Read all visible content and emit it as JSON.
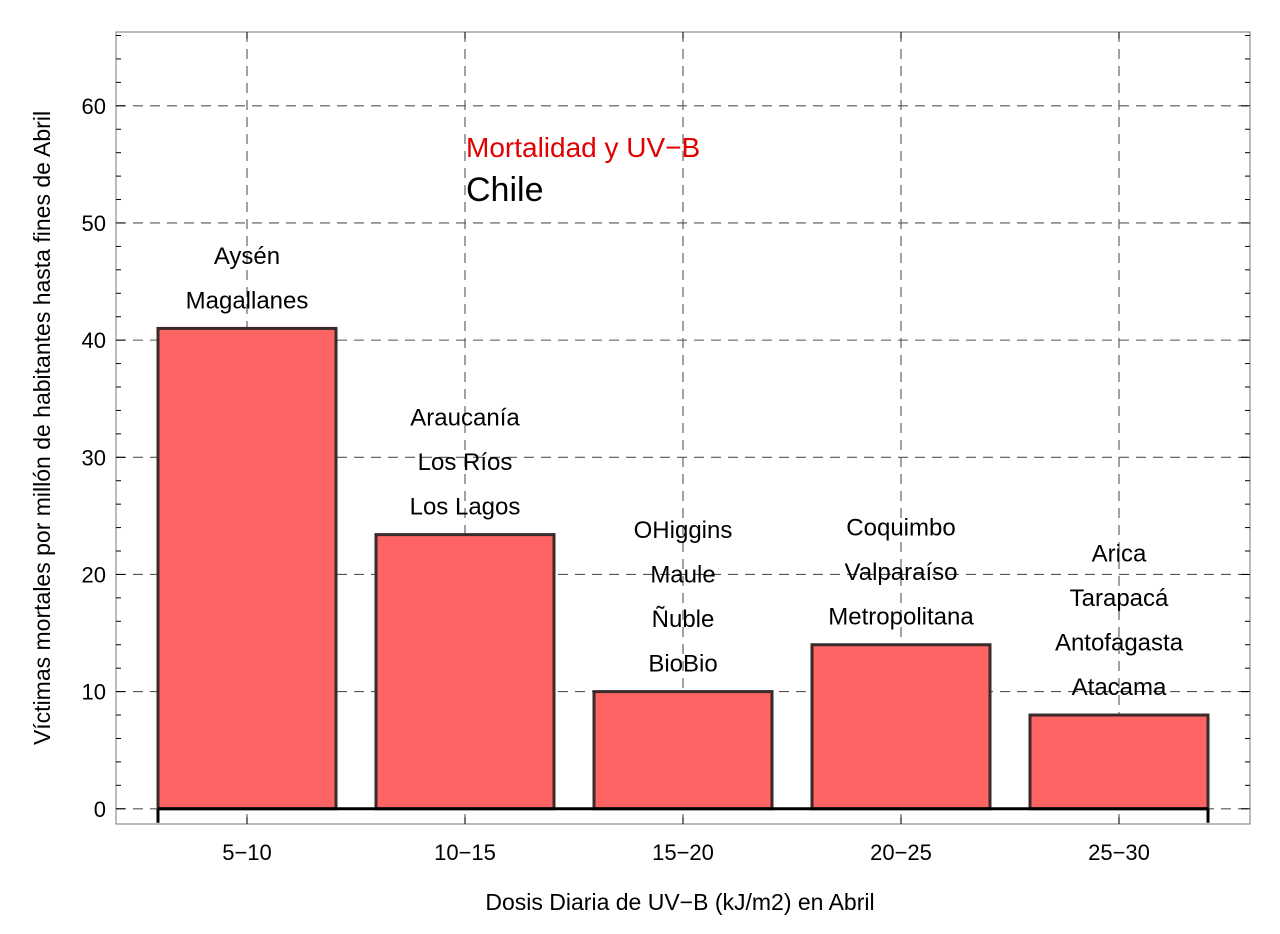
{
  "chart_data": {
    "type": "bar",
    "title": "Mortalidad y UV−B",
    "subtitle": "Chile",
    "xlabel": "Dosis Diaria de UV−B (kJ/m2) en Abril",
    "ylabel": "Víctimas mortales por millón de habitantes hasta fines de Abril",
    "categories": [
      "5−10",
      "10−15",
      "15−20",
      "20−25",
      "25−30"
    ],
    "values": [
      41,
      23.4,
      10,
      14,
      8
    ],
    "ylim": [
      -1.3,
      66.3
    ],
    "yticks": [
      "0",
      "10",
      "20",
      "30",
      "40",
      "50",
      "60"
    ],
    "grid": true,
    "bar_color": "#ff6464",
    "title_color": "#e00000",
    "region_labels": [
      [
        "Aysén",
        "Magallanes"
      ],
      [
        "Araucanía",
        "Los Ríos",
        "Los Lagos"
      ],
      [
        "OHiggins",
        "Maule",
        "Ñuble",
        "BioBio"
      ],
      [
        "Coquimbo",
        "Valparaíso",
        "Metropolitana"
      ],
      [
        "Arica",
        "Tarapacá",
        "Antofagasta",
        "Atacama"
      ]
    ]
  }
}
